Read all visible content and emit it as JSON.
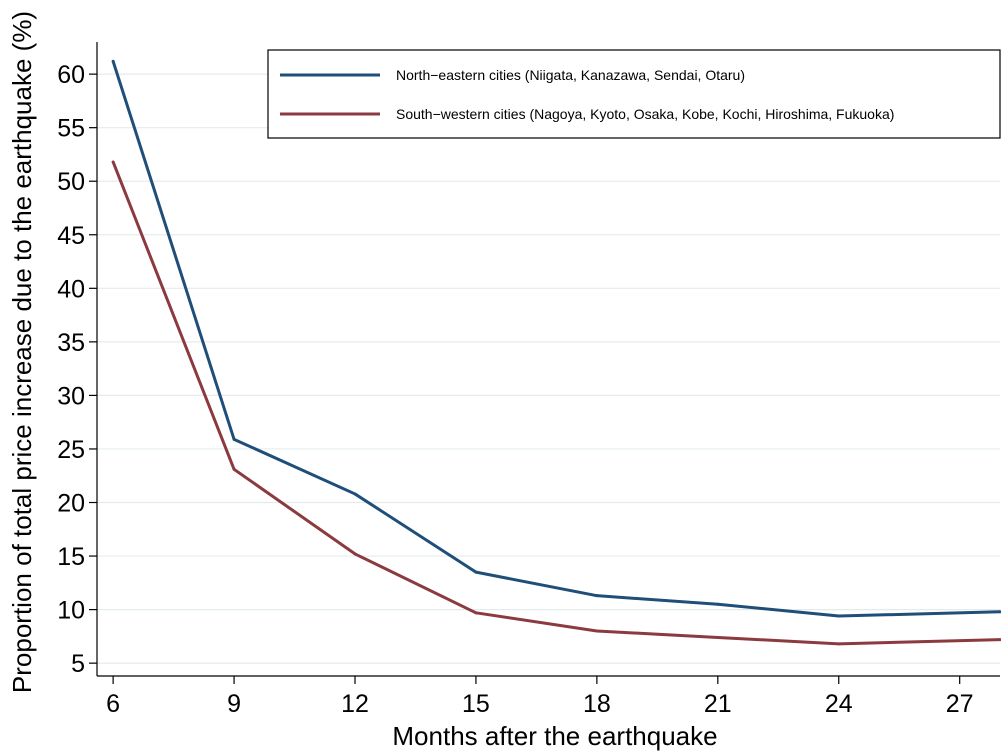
{
  "chart_data": {
    "type": "line",
    "xlabel": "Months after the earthquake",
    "ylabel": "Proportion of total price increase due to the earthquake (%)",
    "x": [
      6,
      9,
      12,
      15,
      18,
      21,
      24,
      28
    ],
    "xticks": [
      6,
      9,
      12,
      15,
      18,
      21,
      24,
      27
    ],
    "yticks": [
      5,
      10,
      15,
      20,
      25,
      30,
      35,
      40,
      45,
      50,
      55,
      60
    ],
    "xlim": [
      5.6,
      28
    ],
    "ylim": [
      3.8,
      63
    ],
    "grid": true,
    "legend_position": "top-right",
    "series": [
      {
        "name": "North−eastern cities (Niigata, Kanazawa, Sendai, Otaru)",
        "color": "#1f4e79",
        "values": [
          61.2,
          25.9,
          20.8,
          13.5,
          11.3,
          10.5,
          9.4,
          9.8
        ]
      },
      {
        "name": "South−western cities (Nagoya, Kyoto, Osaka, Kobe, Kochi, Hiroshima, Fukuoka)",
        "color": "#8b3a3f",
        "values": [
          51.8,
          23.1,
          15.2,
          9.7,
          8.0,
          7.4,
          6.8,
          7.2
        ]
      }
    ]
  }
}
